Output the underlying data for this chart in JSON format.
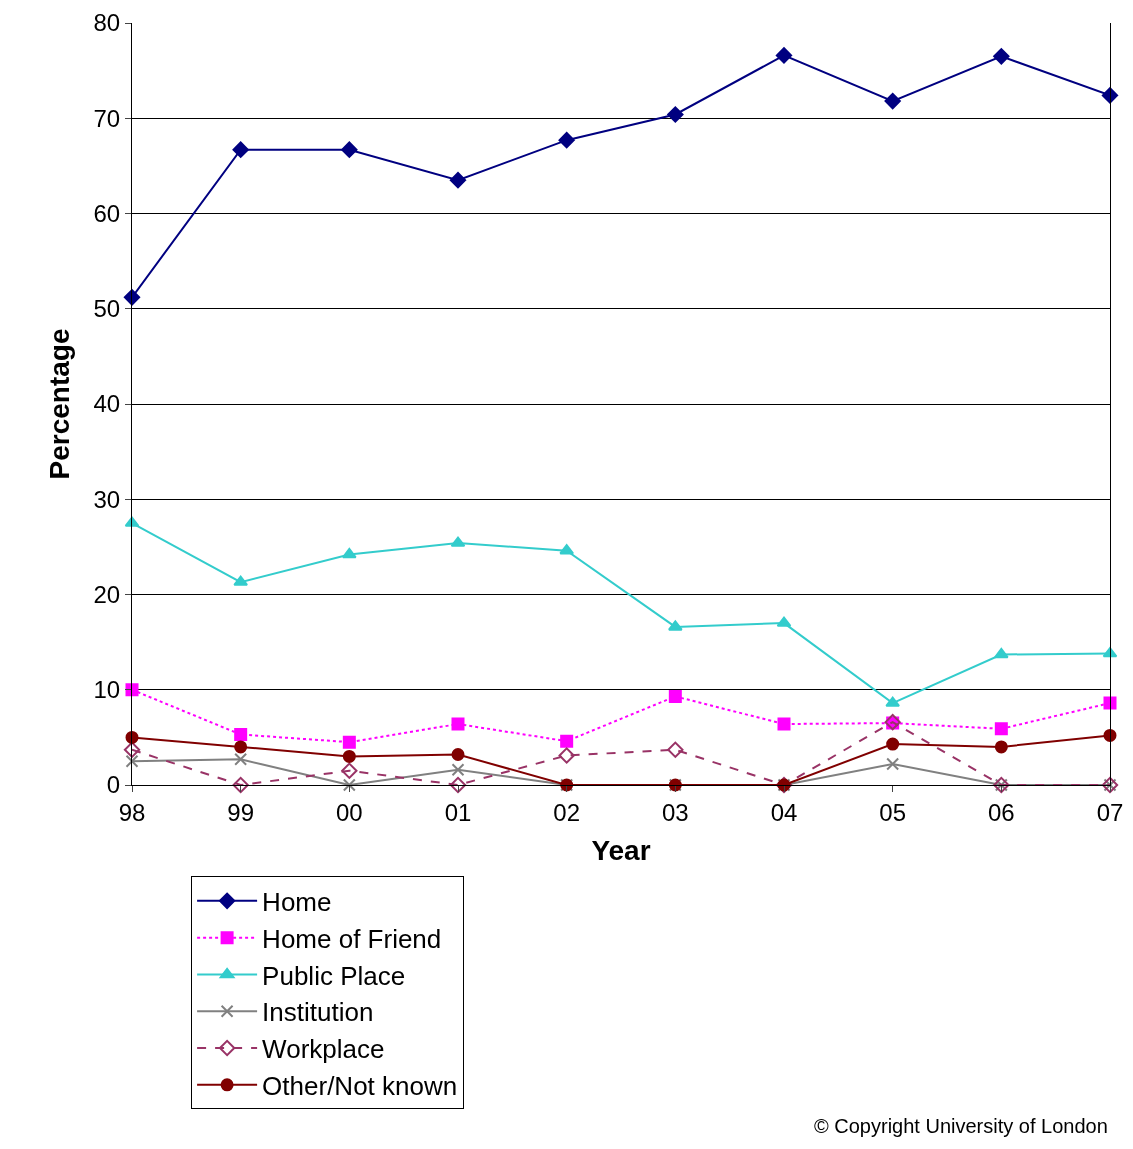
{
  "chart_data": {
    "type": "line",
    "xlabel": "Year",
    "ylabel": "Percentage",
    "categories": [
      "98",
      "99",
      "00",
      "01",
      "02",
      "03",
      "04",
      "05",
      "06",
      "07"
    ],
    "series": [
      {
        "name": "Home",
        "color": "#000080",
        "marker": "diamond",
        "line_style": "solid",
        "values": [
          51.2,
          66.7,
          66.7,
          63.5,
          67.7,
          70.4,
          76.6,
          71.8,
          76.5,
          72.4
        ]
      },
      {
        "name": "Home of Friend",
        "color": "#ff00ff",
        "marker": "square",
        "line_style": "dotted",
        "values": [
          10.0,
          5.3,
          4.5,
          6.4,
          4.6,
          9.3,
          6.4,
          6.5,
          5.9,
          8.6
        ]
      },
      {
        "name": "Public Place",
        "color": "#33cccc",
        "marker": "triangle",
        "line_style": "solid",
        "values": [
          27.5,
          21.3,
          24.2,
          25.4,
          24.6,
          16.6,
          17.0,
          8.6,
          13.7,
          13.8
        ]
      },
      {
        "name": "Institution",
        "color": "#808080",
        "marker": "cross",
        "line_style": "solid",
        "values": [
          2.5,
          2.7,
          0,
          1.6,
          0,
          0,
          0,
          2.2,
          0,
          0
        ]
      },
      {
        "name": "Workplace",
        "color": "#993366",
        "marker": "diamond-open",
        "line_style": "dashed",
        "values": [
          3.7,
          0,
          1.5,
          0,
          3.1,
          3.7,
          0,
          6.6,
          0,
          0
        ]
      },
      {
        "name": "Other/Not known",
        "color": "#800000",
        "marker": "circle",
        "line_style": "solid",
        "values": [
          5.0,
          4.0,
          3.0,
          3.2,
          0,
          0,
          0,
          4.3,
          4.0,
          5.2
        ]
      }
    ],
    "ylim": [
      0,
      80
    ],
    "yticks": [
      0,
      10,
      20,
      30,
      40,
      50,
      60,
      70,
      80
    ],
    "grid": "y",
    "legend": "bottom left",
    "annotations": [
      "© Copyright University of London"
    ]
  }
}
